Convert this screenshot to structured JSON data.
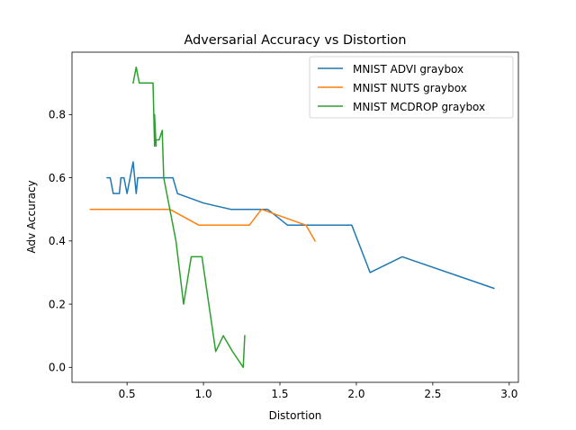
{
  "chart_data": {
    "type": "line",
    "title": "Adversarial Accuracy vs Distortion",
    "xlabel": "Distortion",
    "ylabel": "Adv Accuracy",
    "xlim": [
      0.14,
      3.06
    ],
    "ylim": [
      -0.0475,
      0.9975
    ],
    "xticks": [
      0.5,
      1.0,
      1.5,
      2.0,
      2.5,
      3.0
    ],
    "xtick_labels": [
      "0.5",
      "1.0",
      "1.5",
      "2.0",
      "2.5",
      "3.0"
    ],
    "yticks": [
      0.0,
      0.2,
      0.4,
      0.6,
      0.8
    ],
    "ytick_labels": [
      "0.0",
      "0.2",
      "0.4",
      "0.6",
      "0.8"
    ],
    "grid": false,
    "legend_position": "upper right",
    "series": [
      {
        "name": "MNIST ADVI graybox",
        "color": "#1f77b4",
        "x": [
          0.37,
          0.39,
          0.41,
          0.45,
          0.46,
          0.48,
          0.5,
          0.52,
          0.54,
          0.56,
          0.57,
          0.6,
          0.62,
          0.66,
          0.7,
          0.75,
          0.8,
          0.83,
          1.0,
          1.18,
          1.42,
          1.55,
          1.97,
          2.09,
          2.3,
          2.9
        ],
        "y": [
          0.6,
          0.6,
          0.55,
          0.55,
          0.6,
          0.6,
          0.55,
          0.6,
          0.65,
          0.55,
          0.6,
          0.6,
          0.6,
          0.6,
          0.6,
          0.6,
          0.6,
          0.55,
          0.52,
          0.5,
          0.5,
          0.45,
          0.45,
          0.3,
          0.35,
          0.25
        ]
      },
      {
        "name": "MNIST NUTS graybox",
        "color": "#ff7f0e",
        "x": [
          0.26,
          0.5,
          0.78,
          0.97,
          1.3,
          1.38,
          1.67,
          1.73
        ],
        "y": [
          0.5,
          0.5,
          0.5,
          0.45,
          0.45,
          0.5,
          0.45,
          0.4
        ]
      },
      {
        "name": "MNIST MCDROP graybox",
        "color": "#2ca02c",
        "x": [
          0.54,
          0.56,
          0.58,
          0.67,
          0.68,
          0.68,
          0.69,
          0.69,
          0.71,
          0.73,
          0.74,
          0.76,
          0.82,
          0.87,
          0.92,
          0.99,
          1.08,
          1.13,
          1.19,
          1.26,
          1.27
        ],
        "y": [
          0.9,
          0.95,
          0.9,
          0.9,
          0.7,
          0.8,
          0.7,
          0.72,
          0.72,
          0.75,
          0.6,
          0.55,
          0.4,
          0.2,
          0.35,
          0.35,
          0.05,
          0.1,
          0.05,
          0.0,
          0.1
        ]
      }
    ]
  }
}
